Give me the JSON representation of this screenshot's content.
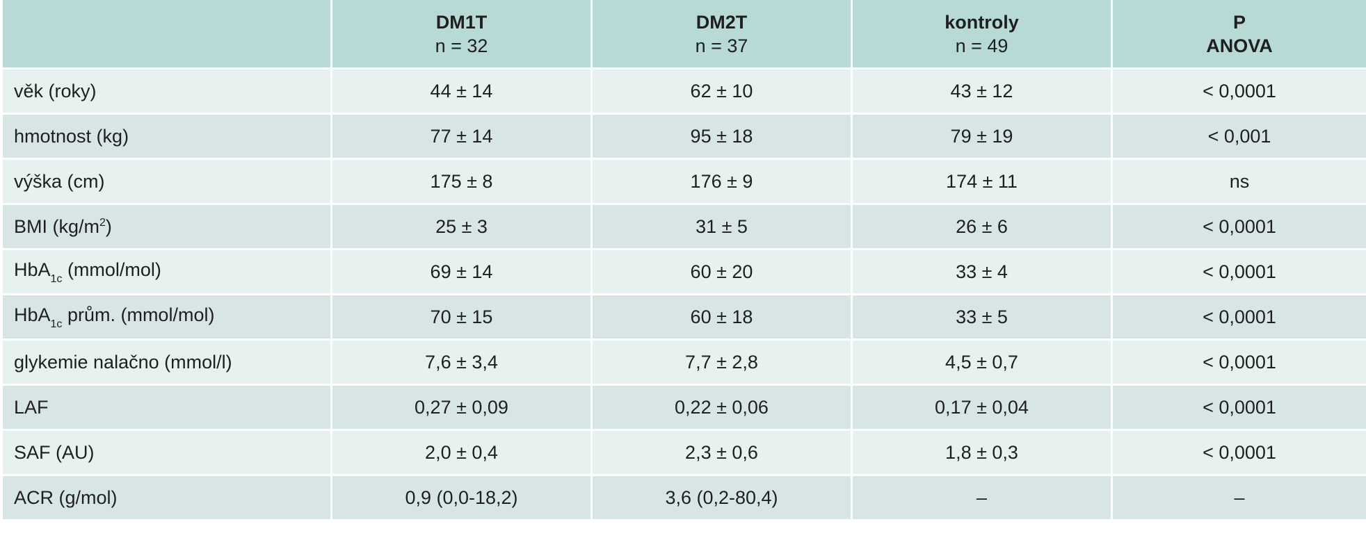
{
  "header": {
    "corner": "",
    "col1_title": "DM1T",
    "col1_n": "n = 32",
    "col2_title": "DM2T",
    "col2_n": "n = 37",
    "col3_title": "kontroly",
    "col3_n": "n = 49",
    "col4_title": "P",
    "col4_sub": "ANOVA"
  },
  "rows": [
    {
      "label": "věk (roky)",
      "dm1t": "44 ± 14",
      "dm2t": "62 ± 10",
      "kontroly": "43 ± 12",
      "p": "< 0,0001"
    },
    {
      "label": "hmotnost (kg)",
      "dm1t": "77 ± 14",
      "dm2t": "95 ± 18",
      "kontroly": "79 ± 19",
      "p": "< 0,001"
    },
    {
      "label": "výška (cm)",
      "dm1t": "175 ± 8",
      "dm2t": "176 ± 9",
      "kontroly": "174 ± 11",
      "p": "ns"
    },
    {
      "label_pre": "BMI (kg/m",
      "label_sup": "2",
      "label_post": ")",
      "dm1t": "25 ± 3",
      "dm2t": "31 ± 5",
      "kontroly": "26 ± 6",
      "p": "< 0,0001"
    },
    {
      "label_pre": "HbA",
      "label_sub": "1c",
      "label_post": " (mmol/mol)",
      "dm1t": "69 ± 14",
      "dm2t": "60 ± 20",
      "kontroly": "33 ± 4",
      "p": "< 0,0001"
    },
    {
      "label_pre": "HbA",
      "label_sub": "1c",
      "label_post": " prům. (mmol/mol)",
      "dm1t": "70 ± 15",
      "dm2t": "60 ± 18",
      "kontroly": "33 ± 5",
      "p": "< 0,0001"
    },
    {
      "label": "glykemie nalačno (mmol/l)",
      "dm1t": "7,6 ± 3,4",
      "dm2t": "7,7 ± 2,8",
      "kontroly": "4,5 ± 0,7",
      "p": "< 0,0001"
    },
    {
      "label": "LAF",
      "dm1t": "0,27 ± 0,09",
      "dm2t": "0,22 ± 0,06",
      "kontroly": "0,17 ± 0,04",
      "p": "< 0,0001"
    },
    {
      "label": "SAF (AU)",
      "dm1t": "2,0 ± 0,4",
      "dm2t": "2,3 ± 0,6",
      "kontroly": "1,8 ± 0,3",
      "p": "< 0,0001"
    },
    {
      "label": "ACR (g/mol)",
      "dm1t": "0,9 (0,0-18,2)",
      "dm2t": "3,6 (0,2-80,4)",
      "kontroly": "–",
      "p": "–"
    }
  ]
}
